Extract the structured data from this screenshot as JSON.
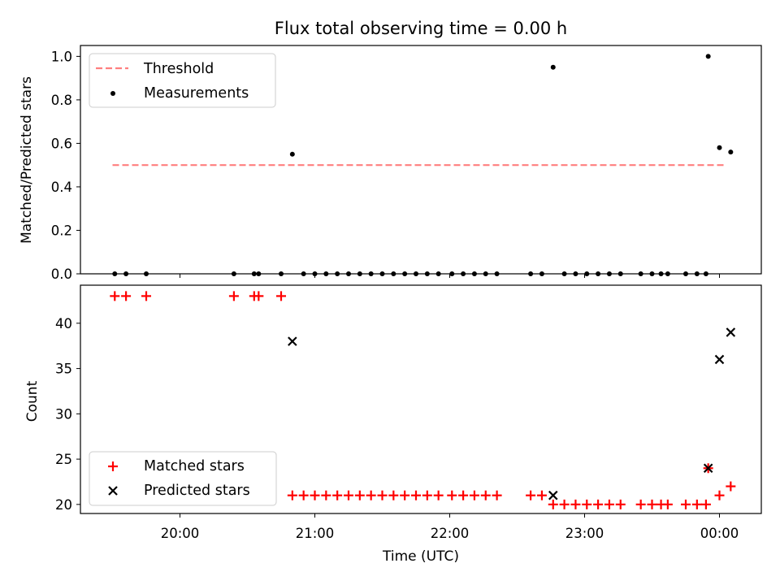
{
  "chart_data": [
    {
      "type": "scatter",
      "title": "Flux total observing time = 0.00 h",
      "ylabel": "Matched/Predicted stars",
      "ylim": [
        0,
        1.05
      ],
      "yticks": [
        0.0,
        0.2,
        0.4,
        0.6,
        0.8,
        1.0
      ],
      "ytick_labels": [
        "0.0",
        "0.2",
        "0.4",
        "0.6",
        "0.8",
        "1.0"
      ],
      "grid": false,
      "legend_position": "top-left",
      "threshold": {
        "name": "Threshold",
        "value": 0.5,
        "x_start": "19:30",
        "x_end": "00:02",
        "color": "#ff7f7f",
        "style": "dashed"
      },
      "series": [
        {
          "name": "Measurements",
          "color": "#000000",
          "marker": "dot",
          "points": [
            [
              "19:31",
              0.0
            ],
            [
              "19:36",
              0.0
            ],
            [
              "19:45",
              0.0
            ],
            [
              "20:24",
              0.0
            ],
            [
              "20:33",
              0.0
            ],
            [
              "20:35",
              0.0
            ],
            [
              "20:45",
              0.0
            ],
            [
              "20:50",
              0.55
            ],
            [
              "20:55",
              0.0
            ],
            [
              "21:00",
              0.0
            ],
            [
              "21:05",
              0.0
            ],
            [
              "21:10",
              0.0
            ],
            [
              "21:15",
              0.0
            ],
            [
              "21:20",
              0.0
            ],
            [
              "21:25",
              0.0
            ],
            [
              "21:30",
              0.0
            ],
            [
              "21:35",
              0.0
            ],
            [
              "21:40",
              0.0
            ],
            [
              "21:45",
              0.0
            ],
            [
              "21:50",
              0.0
            ],
            [
              "21:55",
              0.0
            ],
            [
              "22:01",
              0.0
            ],
            [
              "22:06",
              0.0
            ],
            [
              "22:11",
              0.0
            ],
            [
              "22:16",
              0.0
            ],
            [
              "22:21",
              0.0
            ],
            [
              "22:36",
              0.0
            ],
            [
              "22:41",
              0.0
            ],
            [
              "22:46",
              0.95
            ],
            [
              "22:51",
              0.0
            ],
            [
              "22:56",
              0.0
            ],
            [
              "23:01",
              0.0
            ],
            [
              "23:06",
              0.0
            ],
            [
              "23:11",
              0.0
            ],
            [
              "23:16",
              0.0
            ],
            [
              "23:25",
              0.0
            ],
            [
              "23:30",
              0.0
            ],
            [
              "23:34",
              0.0
            ],
            [
              "23:37",
              0.0
            ],
            [
              "23:45",
              0.0
            ],
            [
              "23:50",
              0.0
            ],
            [
              "23:54",
              0.0
            ],
            [
              "23:55",
              1.0
            ],
            [
              "00:00",
              0.58
            ],
            [
              "00:05",
              0.56
            ]
          ]
        }
      ]
    },
    {
      "type": "scatter",
      "xlabel": "Time (UTC)",
      "ylabel": "Count",
      "ylim": [
        19.0,
        44.2
      ],
      "yticks": [
        20,
        25,
        30,
        35,
        40
      ],
      "ytick_labels": [
        "20",
        "25",
        "30",
        "35",
        "40"
      ],
      "x_ticks": [
        "20:00",
        "21:00",
        "22:00",
        "23:00",
        "00:00"
      ],
      "grid": false,
      "legend_position": "bottom-left",
      "series": [
        {
          "name": "Matched stars",
          "color": "#ff0000",
          "marker": "plus",
          "points": [
            [
              "19:31",
              43
            ],
            [
              "19:36",
              43
            ],
            [
              "19:45",
              43
            ],
            [
              "20:24",
              43
            ],
            [
              "20:33",
              43
            ],
            [
              "20:35",
              43
            ],
            [
              "20:45",
              43
            ],
            [
              "20:50",
              21
            ],
            [
              "20:55",
              21
            ],
            [
              "21:00",
              21
            ],
            [
              "21:05",
              21
            ],
            [
              "21:10",
              21
            ],
            [
              "21:15",
              21
            ],
            [
              "21:20",
              21
            ],
            [
              "21:25",
              21
            ],
            [
              "21:30",
              21
            ],
            [
              "21:35",
              21
            ],
            [
              "21:40",
              21
            ],
            [
              "21:45",
              21
            ],
            [
              "21:50",
              21
            ],
            [
              "21:55",
              21
            ],
            [
              "22:01",
              21
            ],
            [
              "22:06",
              21
            ],
            [
              "22:11",
              21
            ],
            [
              "22:16",
              21
            ],
            [
              "22:21",
              21
            ],
            [
              "22:36",
              21
            ],
            [
              "22:41",
              21
            ],
            [
              "22:46",
              20
            ],
            [
              "22:51",
              20
            ],
            [
              "22:56",
              20
            ],
            [
              "23:01",
              20
            ],
            [
              "23:06",
              20
            ],
            [
              "23:11",
              20
            ],
            [
              "23:16",
              20
            ],
            [
              "23:25",
              20
            ],
            [
              "23:30",
              20
            ],
            [
              "23:34",
              20
            ],
            [
              "23:37",
              20
            ],
            [
              "23:45",
              20
            ],
            [
              "23:50",
              20
            ],
            [
              "23:54",
              20
            ],
            [
              "23:55",
              24
            ],
            [
              "00:00",
              21
            ],
            [
              "00:05",
              22
            ]
          ]
        },
        {
          "name": "Predicted stars",
          "color": "#000000",
          "marker": "x",
          "points": [
            [
              "20:50",
              38
            ],
            [
              "22:46",
              21
            ],
            [
              "23:55",
              24
            ],
            [
              "00:00",
              36
            ],
            [
              "00:05",
              39
            ]
          ]
        }
      ]
    }
  ]
}
